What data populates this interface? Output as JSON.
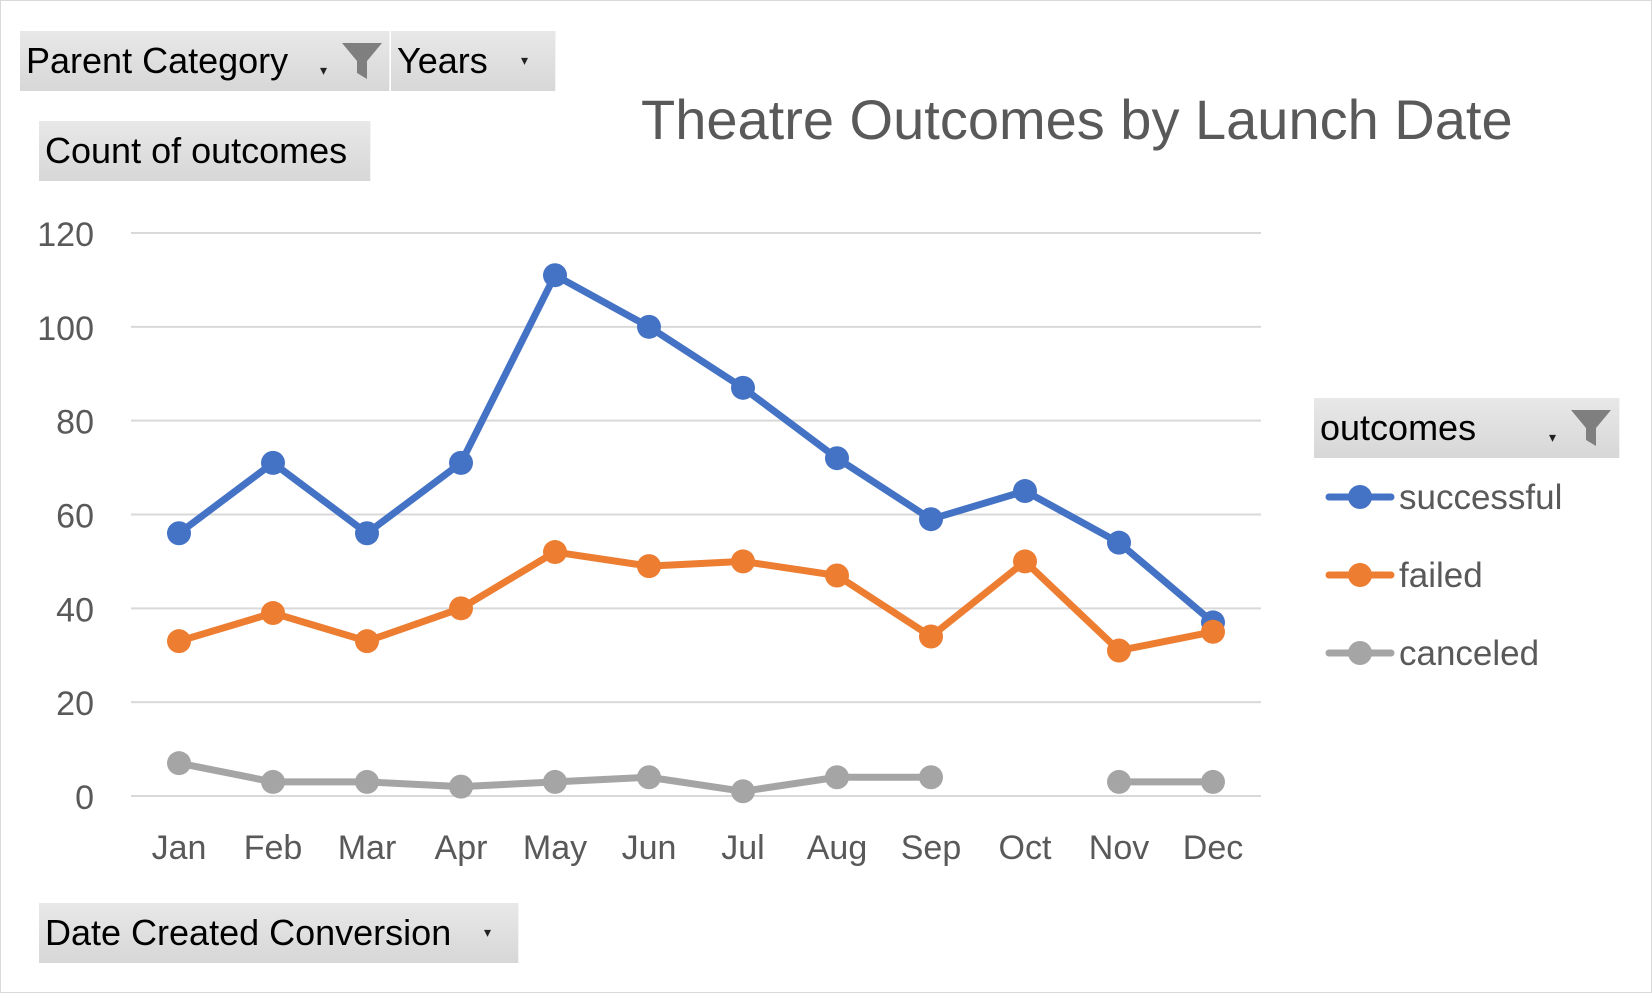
{
  "filters": {
    "parent_category": "Parent Category",
    "years": "Years",
    "values_field": "Count of outcomes",
    "axis_field": "Date Created Conversion",
    "legend_field": "outcomes"
  },
  "colors": {
    "successful": "#4472c4",
    "failed": "#ed7d31",
    "canceled": "#a5a5a5",
    "grid": "#d9d9d9",
    "axis_text": "#595959"
  },
  "chart_data": {
    "type": "line",
    "title": "Theatre Outcomes by Launch Date",
    "xlabel": "",
    "ylabel": "",
    "categories": [
      "Jan",
      "Feb",
      "Mar",
      "Apr",
      "May",
      "Jun",
      "Jul",
      "Aug",
      "Sep",
      "Oct",
      "Nov",
      "Dec"
    ],
    "ylim": [
      0,
      120
    ],
    "yticks": [
      0,
      20,
      40,
      60,
      80,
      100,
      120
    ],
    "grid": true,
    "legend": "right",
    "series": [
      {
        "name": "successful",
        "values": [
          56,
          71,
          56,
          71,
          111,
          100,
          87,
          72,
          59,
          65,
          54,
          37
        ]
      },
      {
        "name": "failed",
        "values": [
          33,
          39,
          33,
          40,
          52,
          49,
          50,
          47,
          34,
          50,
          31,
          35
        ]
      },
      {
        "name": "canceled",
        "values": [
          7,
          3,
          3,
          2,
          3,
          4,
          1,
          4,
          4,
          null,
          3,
          3
        ]
      }
    ]
  }
}
